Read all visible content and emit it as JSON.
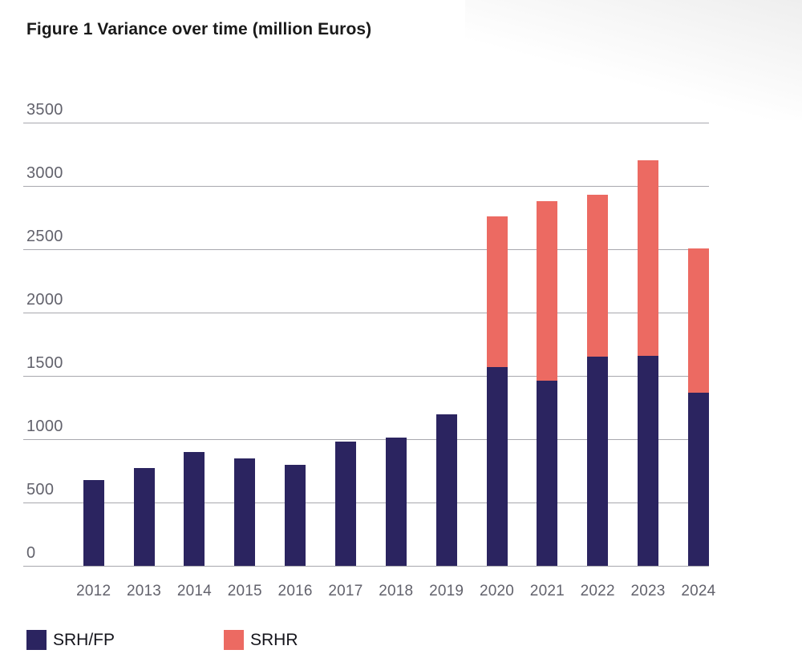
{
  "figure": {
    "title": "Figure 1 Variance over time (million Euros)"
  },
  "legend": {
    "items": [
      {
        "label": "SRH/FP",
        "color": "#2b2460"
      },
      {
        "label": "SRHR",
        "color": "#ec6a62"
      }
    ],
    "position": "bottom-left"
  },
  "chart_data": {
    "type": "bar",
    "stacked": true,
    "title": "Figure 1 Variance over time (million Euros)",
    "unit": "million Euros",
    "categories": [
      "2012",
      "2013",
      "2014",
      "2015",
      "2016",
      "2017",
      "2018",
      "2019",
      "2020",
      "2021",
      "2022",
      "2023",
      "2024"
    ],
    "series": [
      {
        "name": "SRH/FP",
        "color": "#2b2460",
        "values": [
          675,
          775,
          900,
          850,
          800,
          980,
          1015,
          1195,
          1570,
          1460,
          1650,
          1660,
          1370
        ]
      },
      {
        "name": "SRHR",
        "color": "#ec6a62",
        "values": [
          0,
          0,
          0,
          0,
          0,
          0,
          0,
          0,
          1190,
          1420,
          1280,
          1545,
          1135
        ]
      }
    ],
    "totals": [
      675,
      775,
      900,
      850,
      800,
      980,
      1015,
      1195,
      2760,
      2880,
      2930,
      3205,
      2505
    ],
    "xlabel": "",
    "ylabel": "",
    "ylim": [
      0,
      3500
    ],
    "yticks": [
      0,
      500,
      1000,
      1500,
      2000,
      2500,
      3000,
      3500
    ],
    "grid": "horizontal",
    "gridline_color": "#a8a8ae",
    "axis_text_color": "#62626c",
    "legend_position": "bottom-left"
  }
}
